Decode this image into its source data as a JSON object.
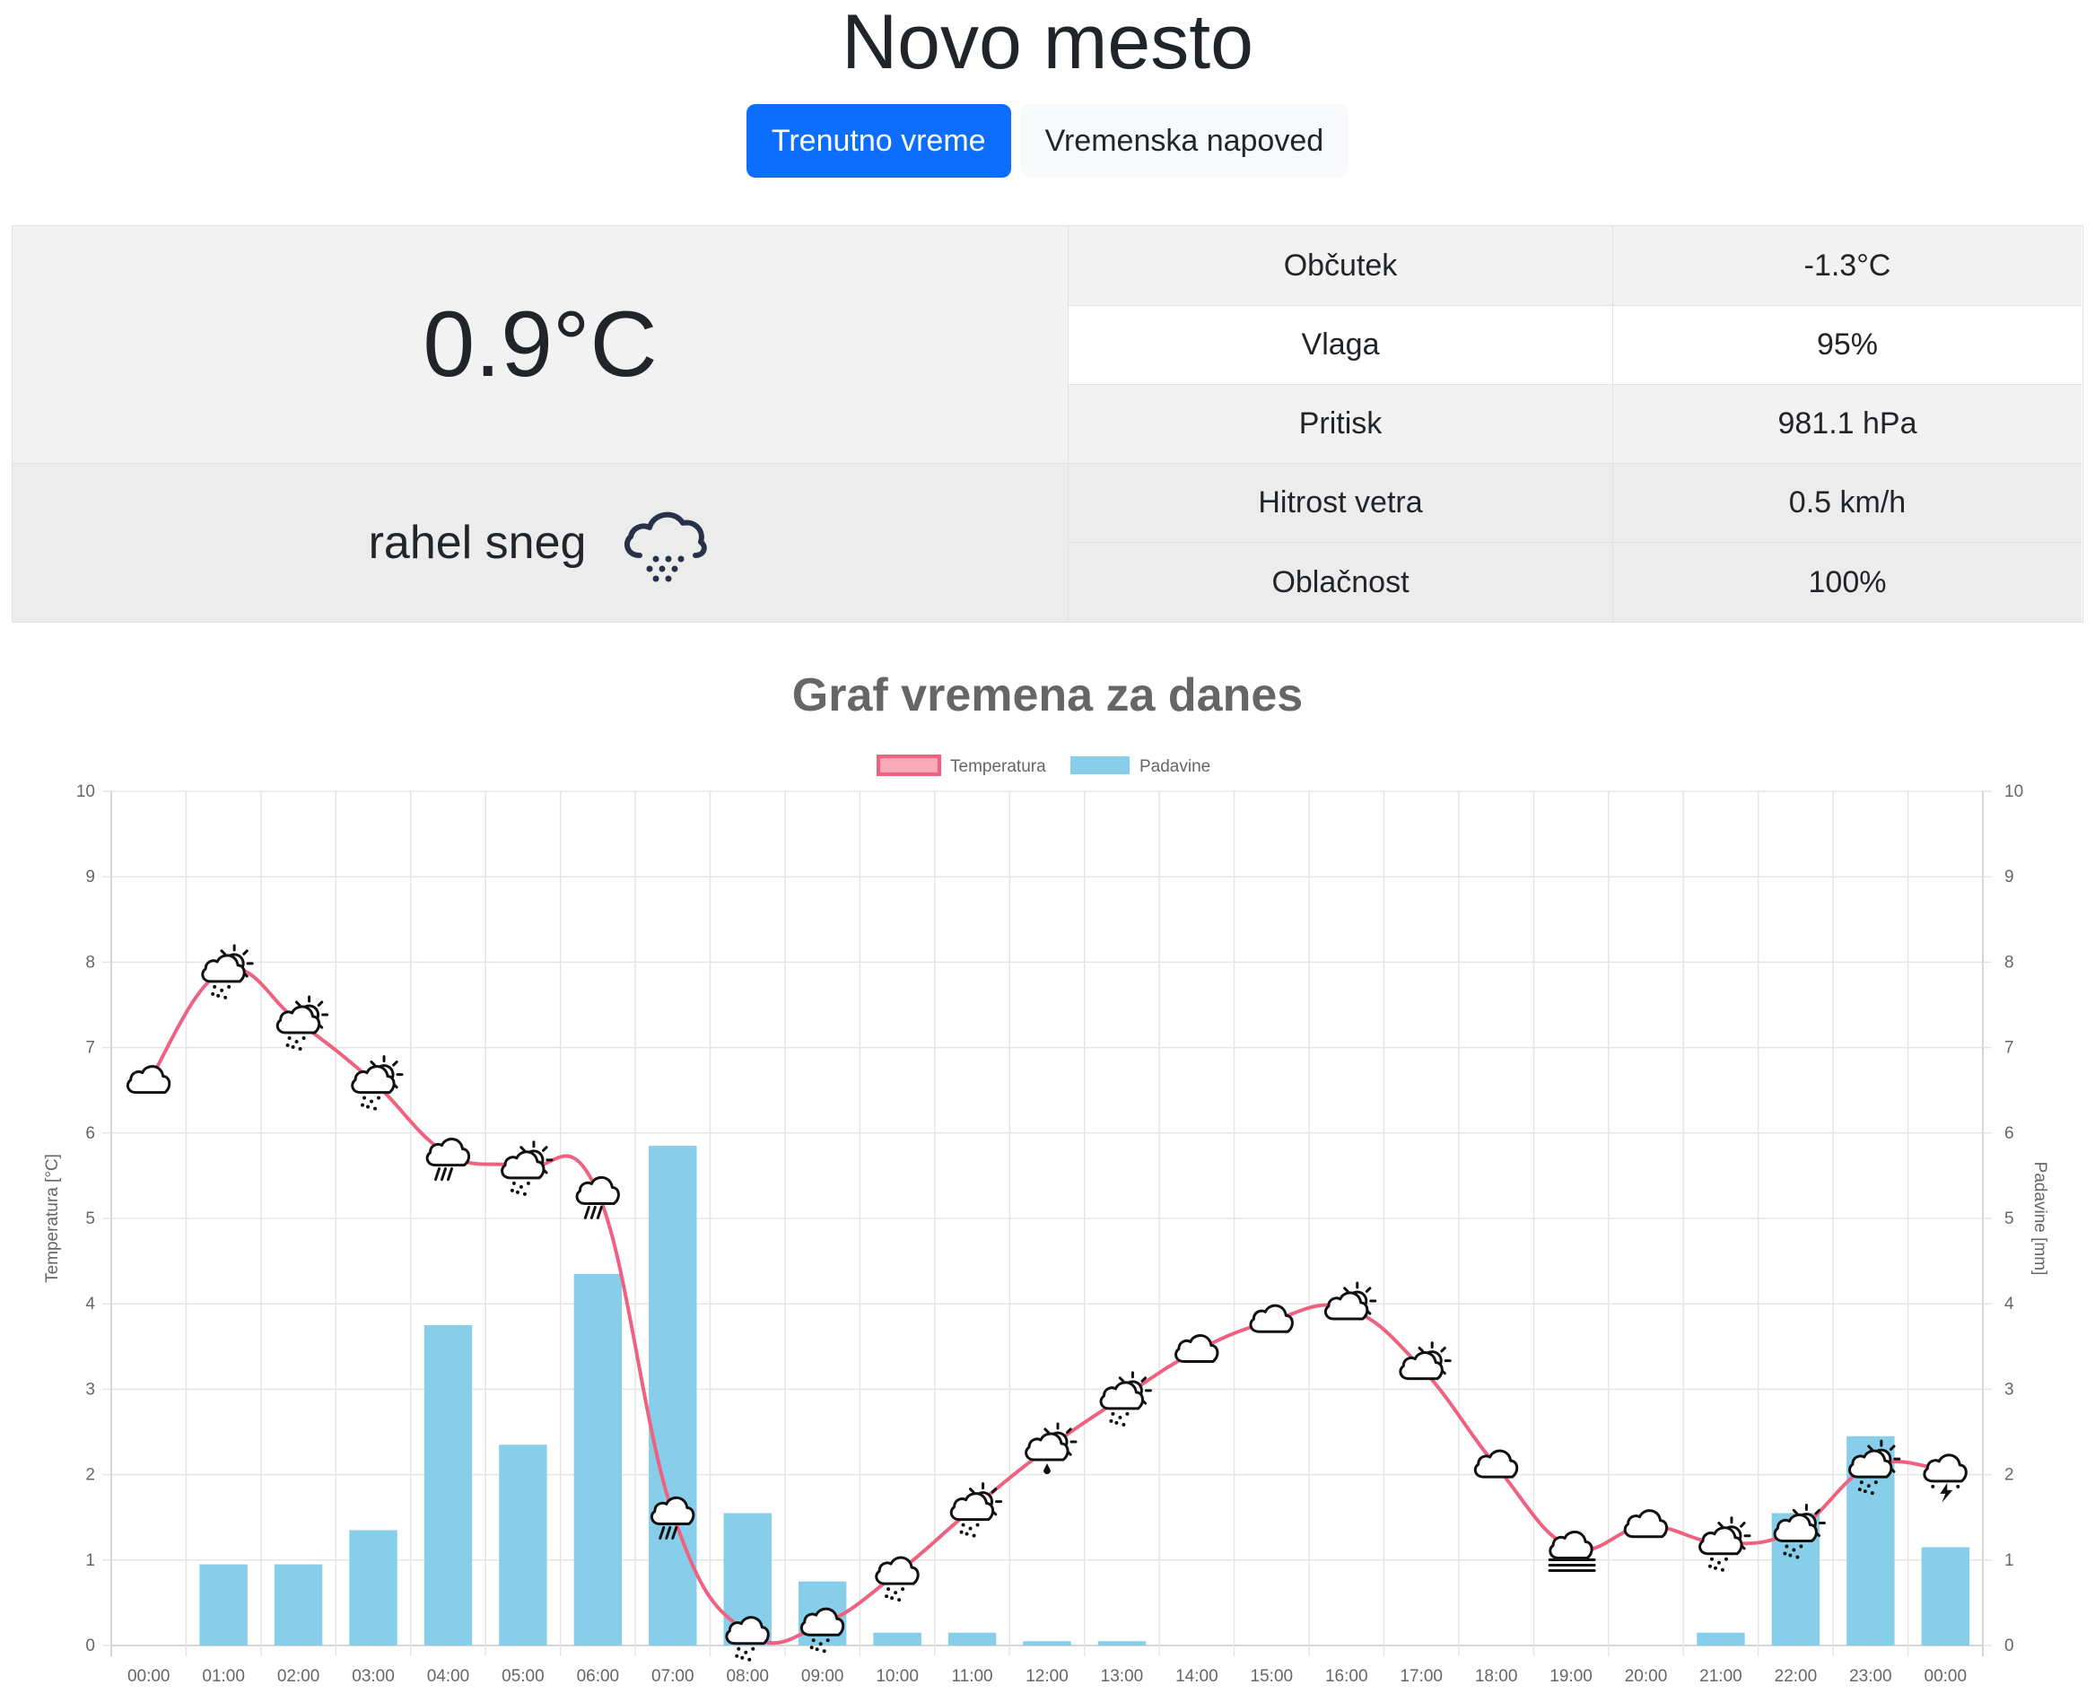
{
  "city": "Novo mesto",
  "tabs": [
    {
      "label": "Trenutno vreme",
      "active": true
    },
    {
      "label": "Vremenska napoved",
      "active": false
    }
  ],
  "current": {
    "temperature": "0.9°C",
    "condition": "rahel sneg",
    "condition_icon": "cloud-snow-icon",
    "rows": [
      {
        "label": "Občutek",
        "value": "-1.3°C"
      },
      {
        "label": "Vlaga",
        "value": "95%"
      },
      {
        "label": "Pritisk",
        "value": "981.1 hPa"
      },
      {
        "label": "Hitrost vetra",
        "value": "0.5 km/h"
      },
      {
        "label": "Oblačnost",
        "value": "100%"
      }
    ]
  },
  "chart_title": "Graf vremena za danes",
  "colors": {
    "primary": "#0d6efd",
    "temperature_line": "#f0617f",
    "temperature_fill": "#f9a8b8",
    "precipitation": "#87ceeb",
    "grid": "#e5e5e5",
    "text_muted": "#666666"
  },
  "chart_data": {
    "type": "bar",
    "categories": [
      "00:00",
      "01:00",
      "02:00",
      "03:00",
      "04:00",
      "05:00",
      "06:00",
      "07:00",
      "08:00",
      "09:00",
      "10:00",
      "11:00",
      "12:00",
      "13:00",
      "14:00",
      "15:00",
      "16:00",
      "17:00",
      "18:00",
      "19:00",
      "20:00",
      "21:00",
      "22:00",
      "23:00",
      "00:00"
    ],
    "series": [
      {
        "name": "Temperatura",
        "type": "line",
        "axis": "left",
        "values": [
          6.6,
          7.9,
          7.3,
          6.6,
          5.75,
          5.6,
          5.3,
          1.55,
          0.15,
          0.25,
          0.85,
          1.6,
          2.3,
          2.9,
          3.45,
          3.8,
          3.95,
          3.25,
          2.1,
          1.15,
          1.4,
          1.2,
          1.35,
          2.1,
          2.05
        ]
      },
      {
        "name": "Padavine",
        "type": "bar",
        "axis": "right",
        "values": [
          0,
          0.95,
          0.95,
          1.35,
          3.75,
          2.35,
          4.35,
          5.85,
          1.55,
          0.75,
          0.15,
          0.15,
          0.05,
          0.05,
          0,
          0,
          0,
          0,
          0,
          0,
          0,
          0.15,
          1.55,
          2.45,
          1.15
        ]
      }
    ],
    "icons": [
      "partly-cloudy-icon",
      "partly-sunny-snow-icon",
      "partly-sunny-snow-icon",
      "partly-sunny-snow-icon",
      "rain-icon",
      "partly-sunny-snow-icon",
      "rain-icon",
      "rain-icon",
      "snow-icon",
      "snow-icon",
      "snow-icon",
      "partly-sunny-snow-icon",
      "partly-sunny-sleet-icon",
      "partly-sunny-snow-icon",
      "partly-cloudy-icon",
      "partly-cloudy-icon",
      "partly-sunny-icon",
      "partly-sunny-icon",
      "partly-cloudy-icon",
      "fog-icon",
      "partly-cloudy-icon",
      "partly-sunny-snow-icon",
      "partly-sunny-snow-icon",
      "partly-sunny-snow-icon",
      "thunderstorm-icon"
    ],
    "y_left": {
      "label": "Temperatura [°C]",
      "min": 0,
      "max": 10,
      "ticks": [
        "0",
        "1",
        "2",
        "3",
        "4",
        "5",
        "6",
        "7",
        "8",
        "9",
        "10"
      ]
    },
    "y_right": {
      "label": "Padavine [mm]",
      "min": 0,
      "max": 10,
      "ticks": [
        "0",
        "1",
        "2",
        "3",
        "4",
        "5",
        "6",
        "7",
        "8",
        "9",
        "10"
      ]
    },
    "legend_position": "top",
    "grid": true
  }
}
